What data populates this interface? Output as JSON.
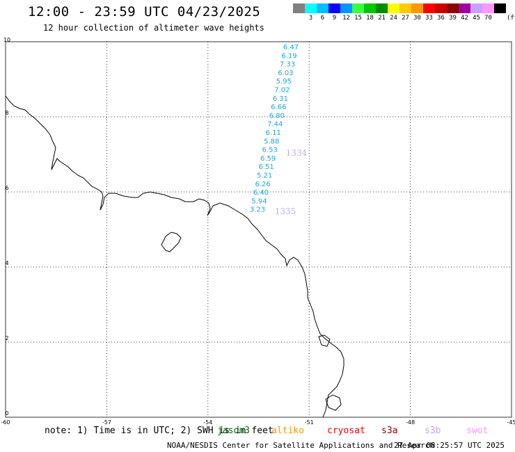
{
  "header": {
    "title": "12:00 - 23:59 UTC 04/23/2025",
    "subtitle": "12 hour collection of altimeter wave heights"
  },
  "legend": {
    "unit": "(ft)",
    "bins": [
      {
        "label": "",
        "color": "#808080"
      },
      {
        "label": "3",
        "color": "#00ffff"
      },
      {
        "label": "6",
        "color": "#00bfff"
      },
      {
        "label": "9",
        "color": "#0000ff"
      },
      {
        "label": "12",
        "color": "#0096ff"
      },
      {
        "label": "15",
        "color": "#3cff3c"
      },
      {
        "label": "18",
        "color": "#00c800"
      },
      {
        "label": "21",
        "color": "#008c00"
      },
      {
        "label": "24",
        "color": "#ffff00"
      },
      {
        "label": "27",
        "color": "#ffc800"
      },
      {
        "label": "30",
        "color": "#ff9600"
      },
      {
        "label": "33",
        "color": "#ff0000"
      },
      {
        "label": "36",
        "color": "#c80000"
      },
      {
        "label": "39",
        "color": "#8c0000"
      },
      {
        "label": "42",
        "color": "#a000a0"
      },
      {
        "label": "45",
        "color": "#c8a0ff"
      },
      {
        "label": "70",
        "color": "#ff96ff"
      },
      {
        "label": "",
        "color": "#000000"
      }
    ]
  },
  "map": {
    "lon_range": [
      -60,
      -45
    ],
    "lat_range": [
      0,
      10
    ],
    "lon_ticks": [
      "-60",
      "-57",
      "-54",
      "-51",
      "-48",
      "-45"
    ],
    "lat_ticks": [
      "0",
      "2",
      "4",
      "6",
      "8",
      "10"
    ],
    "grid": "dotted",
    "coast_color": "#000000"
  },
  "wave_track": {
    "color": "#1aa6d6",
    "values": [
      "6.47",
      "6.19",
      "7.33",
      "6.03",
      "5.95",
      "7.02",
      "6.31",
      "6.66",
      "6.80",
      "7.44",
      "6.11",
      "5.88",
      "6.53",
      "6.59",
      "6.51",
      "5.21",
      "6.26",
      "6.40",
      "5.94",
      "3.23"
    ]
  },
  "pass_labels": [
    {
      "text": "1334",
      "color": "#c0b0e8"
    },
    {
      "text": "1335",
      "color": "#c0b0e8"
    }
  ],
  "footer": {
    "note": "note: 1) Time is in UTC; 2) SWH is in feet",
    "satellites": [
      {
        "name": "jason3",
        "color": "#007000"
      },
      {
        "name": "altiko",
        "color": "#ff9600"
      },
      {
        "name": "cryosat",
        "color": "#ff0000"
      },
      {
        "name": "s3a",
        "color": "#a00000"
      },
      {
        "name": "s3b",
        "color": "#c8a0ff"
      },
      {
        "name": "swot",
        "color": "#ff96ff"
      }
    ],
    "credit": "NOAA/NESDIS Center for Satellite Applications and Research",
    "timestamp": "27 Apr 08:25:57 UTC 2025"
  }
}
